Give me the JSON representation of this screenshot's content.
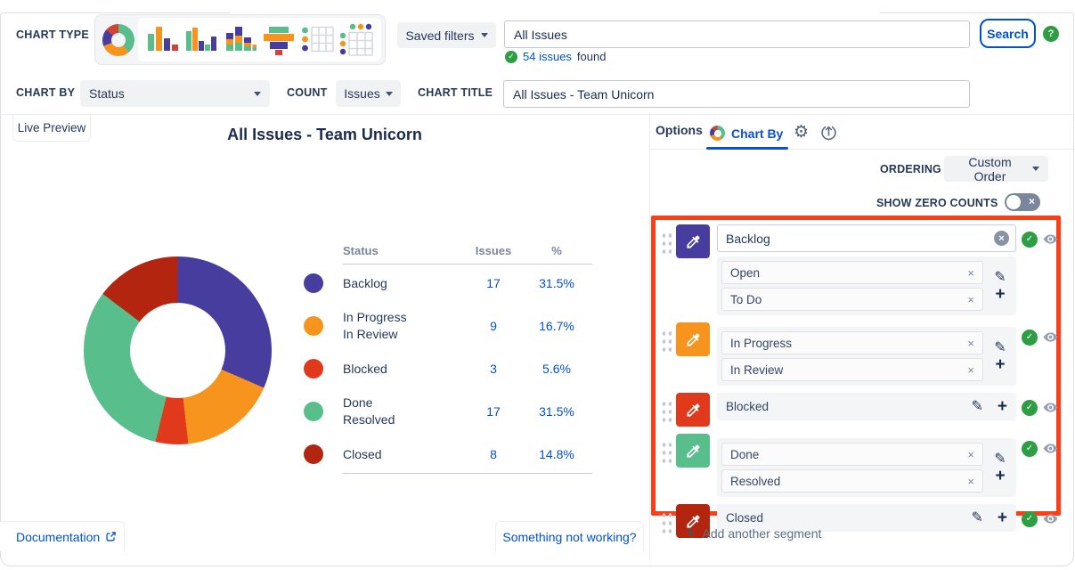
{
  "colors": {
    "accent_blue": "#0052CC",
    "success_green": "#2E9E44",
    "highlight_red": "#FD3E17",
    "purple": "#473D9E",
    "orange": "#F7941D",
    "red": "#E0391B",
    "green": "#57BE8C",
    "dark_red": "#B3250F"
  },
  "toolbar": {
    "chart_type_label": "CHART TYPE",
    "chart_type_icons": [
      "donut-chart",
      "bar-chart",
      "grouped-bar-chart",
      "stacked-bar-chart",
      "funnel-chart",
      "table",
      "pivot-table"
    ],
    "saved_filters_label": "Saved filters",
    "search_value": "All Issues",
    "issues_found_link": "54 issues",
    "issues_found_suffix": "found",
    "search_button_label": "Search",
    "chart_by_label": "CHART BY",
    "chart_by_value": "Status",
    "count_label": "COUNT",
    "count_value": "Issues",
    "chart_title_label": "CHART TITLE",
    "chart_title_value": "All Issues - Team Unicorn"
  },
  "preview": {
    "tab_label": "Live Preview",
    "documentation_label": "Documentation",
    "support_label": "Something not working?"
  },
  "chart_data": {
    "type": "pie",
    "subtype": "donut",
    "title": "All Issues - Team Unicorn",
    "columns": [
      "Status",
      "Issues",
      "%"
    ],
    "total_issues": 54,
    "segments": [
      {
        "label_lines": [
          "Backlog"
        ],
        "issues": 17,
        "percent": "31.5%",
        "value": 31.5,
        "color": "#473D9E"
      },
      {
        "label_lines": [
          "In Progress",
          "In Review"
        ],
        "issues": 9,
        "percent": "16.7%",
        "value": 16.7,
        "color": "#F7941D"
      },
      {
        "label_lines": [
          "Blocked"
        ],
        "issues": 3,
        "percent": "5.6%",
        "value": 5.6,
        "color": "#E0391B"
      },
      {
        "label_lines": [
          "Done",
          "Resolved"
        ],
        "issues": 17,
        "percent": "31.5%",
        "value": 31.5,
        "color": "#57BE8C"
      },
      {
        "label_lines": [
          "Closed"
        ],
        "issues": 8,
        "percent": "14.8%",
        "value": 14.8,
        "color": "#B3250F"
      }
    ]
  },
  "panel": {
    "tab_options": "Options",
    "tab_chart_by": "Chart By",
    "ordering_label": "ORDERING",
    "ordering_value": "Custom Order",
    "show_zero_label": "SHOW ZERO COUNTS",
    "add_segment_label": "Add another segment",
    "segments": [
      {
        "name": "Backlog",
        "color": "#473D9E",
        "style": "name-input",
        "values": [
          "Open",
          "To Do"
        ]
      },
      {
        "name": "In Progress",
        "color": "#F7941D",
        "style": "chips",
        "values": [
          "In Progress",
          "In Review"
        ]
      },
      {
        "name": "Blocked",
        "color": "#E0391B",
        "style": "single",
        "values": [
          "Blocked"
        ]
      },
      {
        "name": "Done",
        "color": "#57BE8C",
        "style": "chips",
        "values": [
          "Done",
          "Resolved"
        ]
      },
      {
        "name": "Closed",
        "color": "#B3250F",
        "style": "single",
        "values": [
          "Closed"
        ]
      }
    ]
  }
}
